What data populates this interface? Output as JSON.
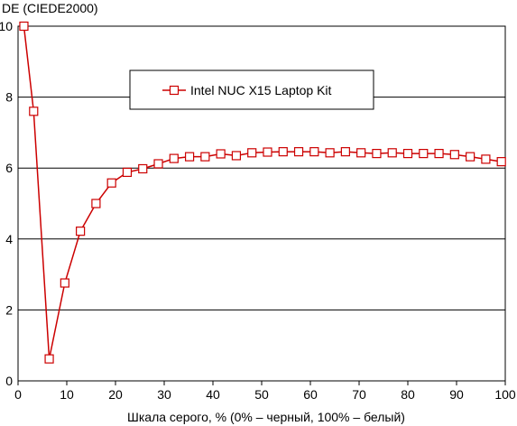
{
  "chart_data": {
    "type": "line",
    "ylabel": "DE (CIEDE2000)",
    "xlabel": "Шкала серого, % (0% – черный, 100% – белый)",
    "xlim": [
      0,
      100
    ],
    "ylim": [
      0,
      10
    ],
    "xticks": [
      "0",
      "10",
      "20",
      "30",
      "40",
      "50",
      "60",
      "70",
      "80",
      "90",
      "100"
    ],
    "yticks": [
      "0",
      "2",
      "4",
      "6",
      "8",
      "10"
    ],
    "grid": "horizontal",
    "legend_position": "top-center",
    "series": [
      {
        "name": "Intel NUC X15 Laptop Kit",
        "color": "#cc0000",
        "marker": "square",
        "points": [
          [
            1.2,
            10.0
          ],
          [
            3.2,
            7.6
          ],
          [
            6.4,
            0.62
          ],
          [
            9.6,
            2.76
          ],
          [
            12.8,
            4.22
          ],
          [
            16.0,
            5.0
          ],
          [
            19.2,
            5.58
          ],
          [
            22.4,
            5.88
          ],
          [
            25.6,
            5.98
          ],
          [
            28.8,
            6.12
          ],
          [
            32.0,
            6.27
          ],
          [
            35.2,
            6.32
          ],
          [
            38.4,
            6.32
          ],
          [
            41.6,
            6.4
          ],
          [
            44.8,
            6.35
          ],
          [
            48.0,
            6.43
          ],
          [
            51.2,
            6.45
          ],
          [
            54.4,
            6.46
          ],
          [
            57.6,
            6.46
          ],
          [
            60.8,
            6.46
          ],
          [
            64.0,
            6.43
          ],
          [
            67.2,
            6.46
          ],
          [
            70.4,
            6.43
          ],
          [
            73.6,
            6.41
          ],
          [
            76.8,
            6.43
          ],
          [
            80.0,
            6.41
          ],
          [
            83.2,
            6.41
          ],
          [
            86.4,
            6.41
          ],
          [
            89.6,
            6.38
          ],
          [
            92.8,
            6.32
          ],
          [
            96.0,
            6.25
          ],
          [
            99.2,
            6.18
          ]
        ]
      }
    ]
  }
}
